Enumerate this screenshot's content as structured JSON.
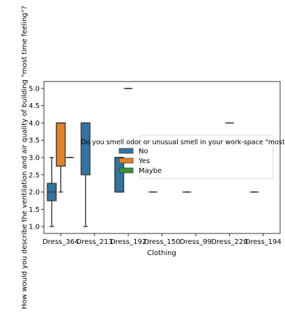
{
  "chart_data": {
    "type": "box",
    "xlabel": "Clothing",
    "ylabel": "How would you describe the ventilation and air quality of building  \"most time feeling\"?",
    "categories": [
      "Dress_364",
      "Dress_213",
      "Dress_192",
      "Dress_150",
      "Dress_99",
      "Dress_220",
      "Dress_194"
    ],
    "ylim": [
      0.8,
      5.2
    ],
    "yticks": [
      "1.0",
      "1.5",
      "2.0",
      "2.5",
      "3.0",
      "3.5",
      "4.0",
      "4.5",
      "5.0"
    ],
    "grid": false,
    "legend": {
      "title": "Do you smell odor or unusual smell in your work-space \"most time feeling\"?",
      "placement": "center",
      "entries": [
        {
          "label": "No",
          "color": "#3274a1"
        },
        {
          "label": "Yes",
          "color": "#e1812c"
        },
        {
          "label": "Maybe",
          "color": "#3a923a"
        }
      ]
    },
    "series": [
      {
        "name": "No",
        "color": "#3274a1",
        "boxes": [
          {
            "category": "Dress_364",
            "whislo": 1.0,
            "q1": 1.75,
            "med": 2.0,
            "q3": 2.25,
            "whishi": 3.0
          },
          {
            "category": "Dress_213",
            "whislo": 1.0,
            "q1": 2.5,
            "med": 4.0,
            "q3": 4.0,
            "whishi": 4.0
          },
          {
            "category": "Dress_192",
            "whislo": 2.0,
            "q1": 2.0,
            "med": 3.0,
            "q3": 3.0,
            "whishi": 3.0
          },
          {
            "category": "Dress_150",
            "whislo": 2.0,
            "q1": 2.0,
            "med": 2.0,
            "q3": 2.0,
            "whishi": 2.0
          },
          {
            "category": "Dress_99",
            "whislo": 2.0,
            "q1": 2.0,
            "med": 2.0,
            "q3": 2.0,
            "whishi": 2.0
          },
          {
            "category": "Dress_194",
            "whislo": 2.0,
            "q1": 2.0,
            "med": 2.0,
            "q3": 2.0,
            "whishi": 2.0
          }
        ]
      },
      {
        "name": "Yes",
        "color": "#e1812c",
        "boxes": [
          {
            "category": "Dress_364",
            "whislo": 2.0,
            "q1": 2.75,
            "med": 4.0,
            "q3": 4.0,
            "whishi": 4.0
          },
          {
            "category": "Dress_192",
            "whislo": 5.0,
            "q1": 5.0,
            "med": 5.0,
            "q3": 5.0,
            "whishi": 5.0
          },
          {
            "category": "Dress_220",
            "whislo": 4.0,
            "q1": 4.0,
            "med": 4.0,
            "q3": 4.0,
            "whishi": 4.0
          }
        ]
      },
      {
        "name": "Maybe",
        "color": "#3a923a",
        "boxes": [
          {
            "category": "Dress_364",
            "whislo": 3.0,
            "q1": 3.0,
            "med": 3.0,
            "q3": 3.0,
            "whishi": 3.0
          }
        ]
      }
    ]
  }
}
